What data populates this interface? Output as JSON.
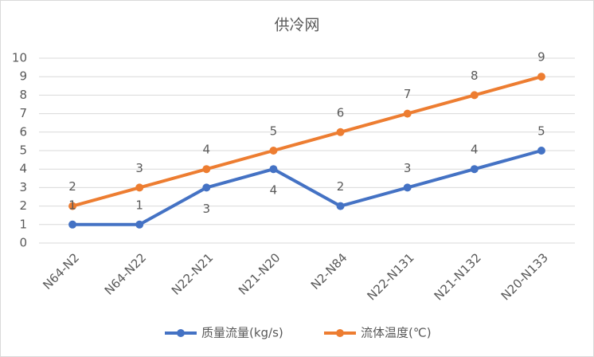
{
  "chart_data": {
    "type": "line",
    "title": "供冷网",
    "categories": [
      "N64-N2",
      "N64-N22",
      "N22-N21",
      "N21-N20",
      "N2-N84",
      "N22-N131",
      "N21-N132",
      "N20-N133"
    ],
    "series": [
      {
        "name": "质量流量(kg/s)",
        "color": "#4472c4",
        "values": [
          1,
          1,
          3,
          4,
          2,
          3,
          4,
          5
        ]
      },
      {
        "name": "流体温度(℃)",
        "color": "#ed7d31",
        "values": [
          2,
          3,
          4,
          5,
          6,
          7,
          8,
          9
        ]
      }
    ],
    "ylim": [
      0,
      10
    ],
    "yticks": [
      0,
      1,
      2,
      3,
      4,
      5,
      6,
      7,
      8,
      9,
      10
    ],
    "grid": true,
    "legend": "bottom"
  }
}
